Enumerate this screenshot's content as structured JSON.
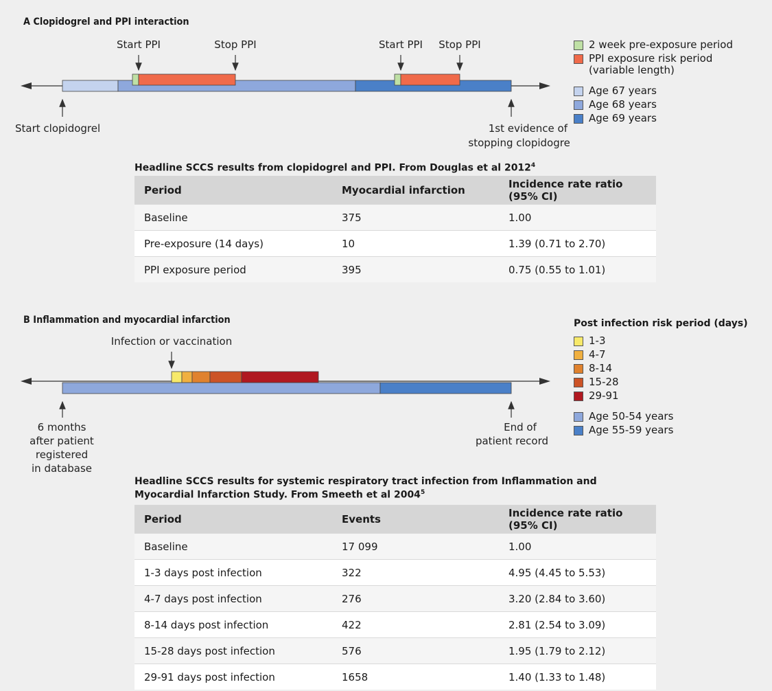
{
  "sectionA": {
    "title": "A Clopidogrel and PPI interaction",
    "labels": {
      "start_ppi_1": "Start PPI",
      "stop_ppi_1": "Stop PPI",
      "start_ppi_2": "Start PPI",
      "stop_ppi_2": "Stop PPI",
      "start_clopidogrel": "Start clopidogrel",
      "stop_line1": "1st evidence of",
      "stop_line2": "stopping clopidogrel"
    },
    "legend": [
      {
        "label": "2 week pre-exposure period",
        "color": "#bfe0a5"
      },
      {
        "label": "PPI exposure risk period\n(variable length)",
        "color": "#f06a4a"
      },
      {
        "label": "Age 67 years",
        "color": "#c4d3ee"
      },
      {
        "label": "Age 68 years",
        "color": "#8ea8dc"
      },
      {
        "label": "Age 69 years",
        "color": "#4a80c8"
      }
    ],
    "table_title": "Headline SCCS results from clopidogrel and PPI. From Douglas et al 2012",
    "table_ref": "4",
    "headers": [
      "Period",
      "Myocardial infarction",
      "Incidence rate ratio (95% CI)"
    ],
    "rows": [
      [
        "Baseline",
        "375",
        "1.00"
      ],
      [
        "Pre-exposure (14 days)",
        "10",
        "1.39 (0.71 to 2.70)"
      ],
      [
        "PPI exposure period",
        "395",
        "0.75 (0.55 to 1.01)"
      ]
    ]
  },
  "sectionB": {
    "title": "B Inflammation and myocardial infarction",
    "labels": {
      "infection": "Infection or vaccination",
      "start_line1": "6 months",
      "start_line2": "after patient",
      "start_line3": "registered",
      "start_line4": "in database",
      "end_line1": "End of",
      "end_line2": "patient record"
    },
    "legend_title": "Post infection risk period (days)",
    "legend": [
      {
        "label": "1-3",
        "color": "#f7e96a"
      },
      {
        "label": "4-7",
        "color": "#f0b040"
      },
      {
        "label": "8-14",
        "color": "#e0822e"
      },
      {
        "label": "15-28",
        "color": "#cc5326"
      },
      {
        "label": "29-91",
        "color": "#b01820"
      },
      {
        "label": "Age 50-54 years",
        "color": "#8ea8dc"
      },
      {
        "label": "Age 55-59 years",
        "color": "#4a80c8"
      }
    ],
    "table_title_1": "Headline SCCS results for systemic respiratory tract infection from Inflammation and",
    "table_title_2": "Myocardial Infarction Study. From Smeeth et al 2004",
    "table_ref": "5",
    "headers": [
      "Period",
      "Events",
      "Incidence rate ratio (95% CI)"
    ],
    "rows": [
      [
        "Baseline",
        "17 099",
        "1.00"
      ],
      [
        "1-3 days post infection",
        "322",
        "4.95 (4.45 to 5.53)"
      ],
      [
        "4-7 days post infection",
        "276",
        "3.20 (2.84 to 3.60)"
      ],
      [
        "8-14 days post infection",
        "422",
        "2.81 (2.54 to 3.09)"
      ],
      [
        "15-28 days post infection",
        "576",
        "1.95 (1.79 to 2.12)"
      ],
      [
        "29-91 days post infection",
        "1658",
        "1.40 (1.33 to 1.48)"
      ]
    ]
  }
}
